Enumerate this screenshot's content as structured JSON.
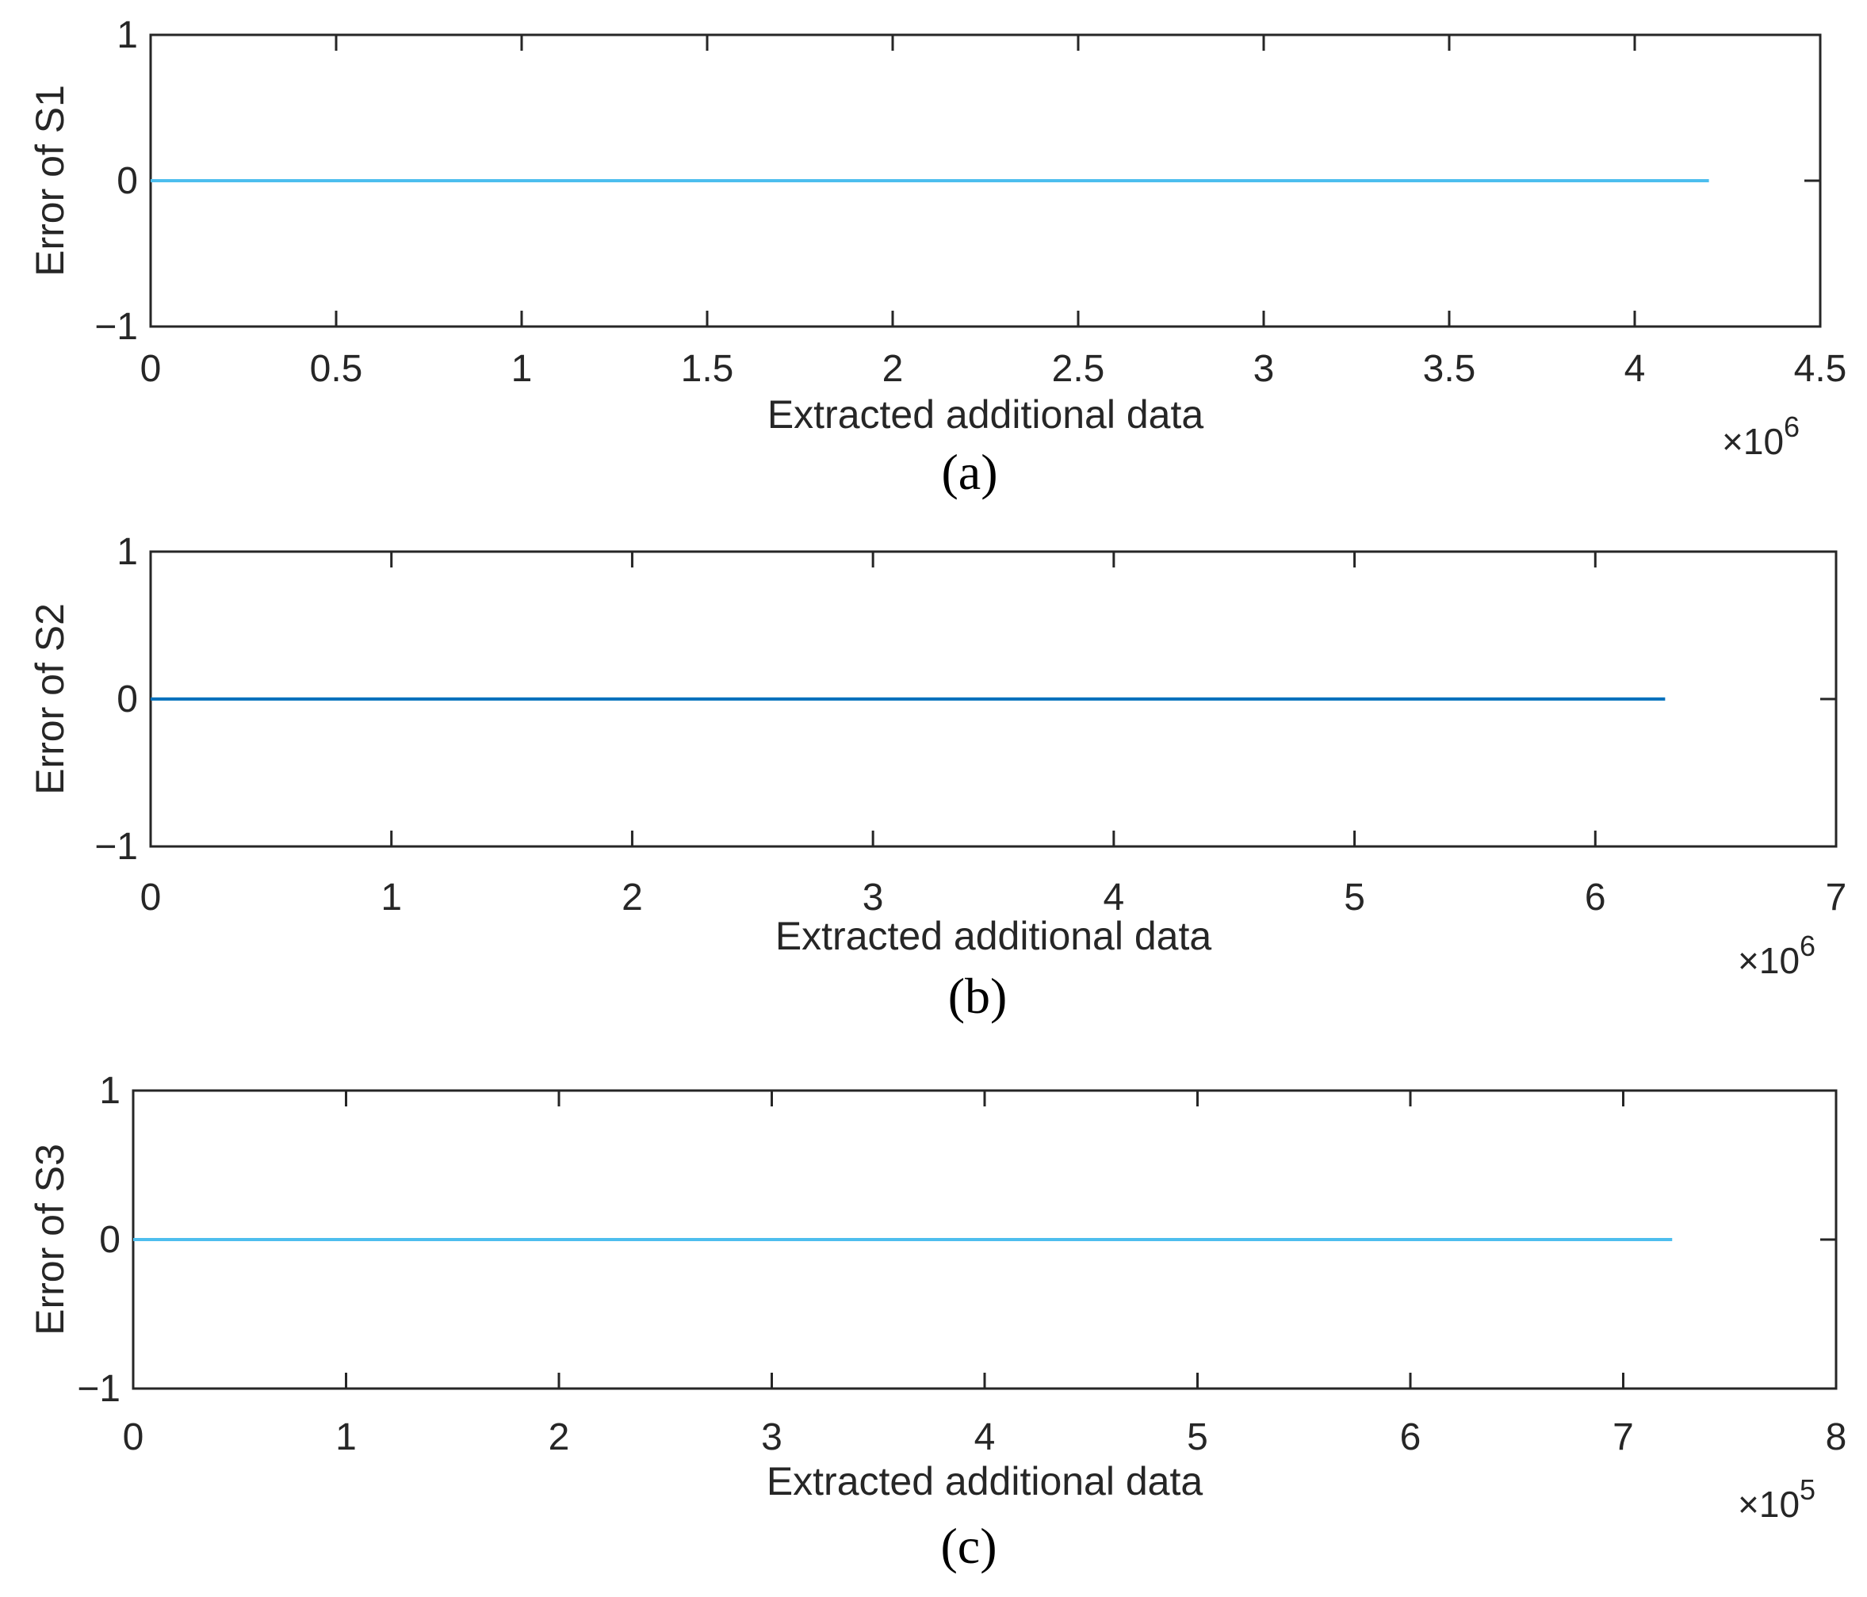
{
  "figure": {
    "panels": [
      {
        "caption": "(a)"
      },
      {
        "caption": "(b)"
      },
      {
        "caption": "(c)"
      }
    ]
  },
  "chart_data": [
    {
      "type": "line",
      "xlabel": "Extracted additional data",
      "ylabel": "Error of S1",
      "xlim": [
        0,
        4.5
      ],
      "ylim": [
        -1,
        1
      ],
      "x_multiplier": {
        "base": "×10",
        "exponent": "6"
      },
      "xticks": [
        0,
        0.5,
        1,
        1.5,
        2,
        2.5,
        3,
        3.5,
        4,
        4.5
      ],
      "xtick_labels": [
        "0",
        "0.5",
        "1",
        "1.5",
        "2",
        "2.5",
        "3",
        "3.5",
        "4",
        "4.5"
      ],
      "yticks": [
        -1,
        0,
        1
      ],
      "ytick_labels": [
        "−1",
        "0",
        "1"
      ],
      "grid": false,
      "series": [
        {
          "x": [
            0,
            4.2
          ],
          "y": [
            0,
            0
          ],
          "color": "#4DBEEE"
        }
      ]
    },
    {
      "type": "line",
      "xlabel": "Extracted additional data",
      "ylabel": "Error of S2",
      "xlim": [
        0,
        7
      ],
      "ylim": [
        -1,
        1
      ],
      "x_multiplier": {
        "base": "×10",
        "exponent": "6"
      },
      "xticks": [
        0,
        1,
        2,
        3,
        4,
        5,
        6,
        7
      ],
      "xtick_labels": [
        "0",
        "1",
        "2",
        "3",
        "4",
        "5",
        "6",
        "7"
      ],
      "yticks": [
        -1,
        0,
        1
      ],
      "ytick_labels": [
        "−1",
        "0",
        "1"
      ],
      "grid": false,
      "series": [
        {
          "x": [
            0,
            6.29
          ],
          "y": [
            0,
            0
          ],
          "color": "#0072BD"
        }
      ]
    },
    {
      "type": "line",
      "xlabel": "Extracted additional data",
      "ylabel": "Error of S3",
      "xlim": [
        0,
        8
      ],
      "ylim": [
        -1,
        1
      ],
      "x_multiplier": {
        "base": "×10",
        "exponent": "5"
      },
      "xticks": [
        0,
        1,
        2,
        3,
        4,
        5,
        6,
        7,
        8
      ],
      "xtick_labels": [
        "0",
        "1",
        "2",
        "3",
        "4",
        "5",
        "6",
        "7",
        "8"
      ],
      "yticks": [
        -1,
        0,
        1
      ],
      "ytick_labels": [
        "−1",
        "0",
        "1"
      ],
      "grid": false,
      "series": [
        {
          "x": [
            0,
            7.23
          ],
          "y": [
            0,
            0
          ],
          "color": "#4DBEEE"
        }
      ]
    }
  ]
}
